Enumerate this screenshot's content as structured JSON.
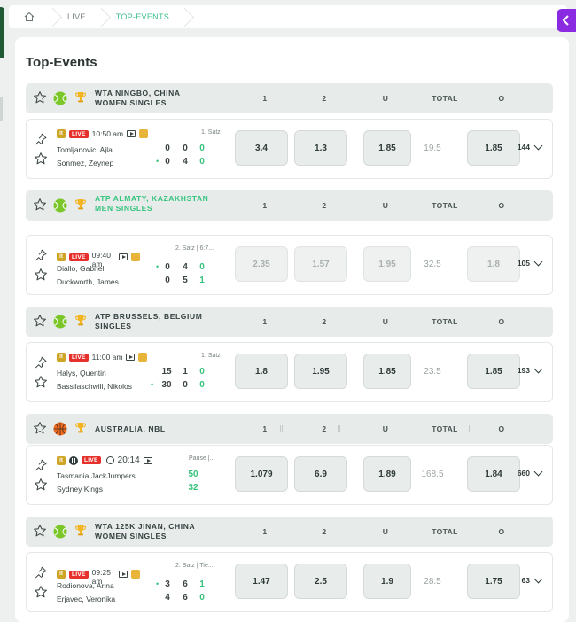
{
  "breadcrumb": {
    "items": [
      "LIVE",
      "TOP-EVENTS"
    ]
  },
  "page": {
    "title": "Top-Events"
  },
  "columns": {
    "c1": "1",
    "c2": "2",
    "u": "U",
    "total": "TOTAL",
    "o": "O"
  },
  "colors": {
    "live": "#e5302b",
    "accent": "#36c47e",
    "back": "#8a2be2"
  },
  "leagues": [
    {
      "name": "WTA NINGBO, CHINA WOMEN SINGLES",
      "sport_icon": "tennis-ball-icon",
      "event": {
        "time": "10:50 am",
        "period": "1. Satz",
        "team1": "Tomljanovic, Ajla",
        "team2": "Sonmez, Zeynep",
        "s1": [
          "0",
          "0",
          "0"
        ],
        "s2": [
          "0",
          "4",
          "0"
        ],
        "odds": [
          "3.4",
          "1.3",
          "1.85",
          "19.5",
          "1.85"
        ],
        "markets": "144"
      }
    },
    {
      "name": "ATP ALMATY, KAZAKHSTAN MEN SINGLES",
      "sport_icon": "tennis-ball-icon",
      "event": {
        "time": "09:40 am",
        "period": "2. Satz | 6:7...",
        "team1": "Diallo, Gabriel",
        "team2": "Duckworth, James",
        "s1": [
          "0",
          "4",
          "0"
        ],
        "s2": [
          "0",
          "5",
          "1"
        ],
        "odds": [
          "2.35",
          "1.57",
          "1.95",
          "32.5",
          "1.8"
        ],
        "markets": "105"
      }
    },
    {
      "name": "ATP BRUSSELS, BELGIUM SINGLES",
      "sport_icon": "tennis-ball-icon",
      "event": {
        "time": "11:00 am",
        "period": "1. Satz",
        "team1": "Halys, Quentin",
        "team2": "Bassilaschwili, Nikolos",
        "s1": [
          "15",
          "1",
          "0"
        ],
        "s2": [
          "30",
          "0",
          "0"
        ],
        "odds": [
          "1.8",
          "1.95",
          "1.85",
          "23.5",
          "1.85"
        ],
        "markets": "193"
      }
    },
    {
      "name": "AUSTRALIA. NBL",
      "sport_icon": "basketball-icon",
      "event": {
        "time": "20:14",
        "period": "Pause |...",
        "team1": "Tasmania JackJumpers",
        "team2": "Sydney Kings",
        "s1": [
          "50"
        ],
        "s2": [
          "32"
        ],
        "odds": [
          "1.079",
          "6.9",
          "1.89",
          "168.5",
          "1.84"
        ],
        "markets": "660"
      }
    },
    {
      "name": "WTA 125K JINAN, CHINA WOMEN SINGLES",
      "sport_icon": "tennis-ball-icon",
      "event": {
        "time": "09:25 am",
        "period": "2. Satz | Tie...",
        "team1": "Rodionova, Arina",
        "team2": "Erjavec, Veronika",
        "s1": [
          "3",
          "6",
          "1"
        ],
        "s2": [
          "4",
          "6",
          "0"
        ],
        "odds": [
          "1.47",
          "2.5",
          "1.9",
          "28.5",
          "1.75"
        ],
        "markets": "63"
      }
    }
  ]
}
